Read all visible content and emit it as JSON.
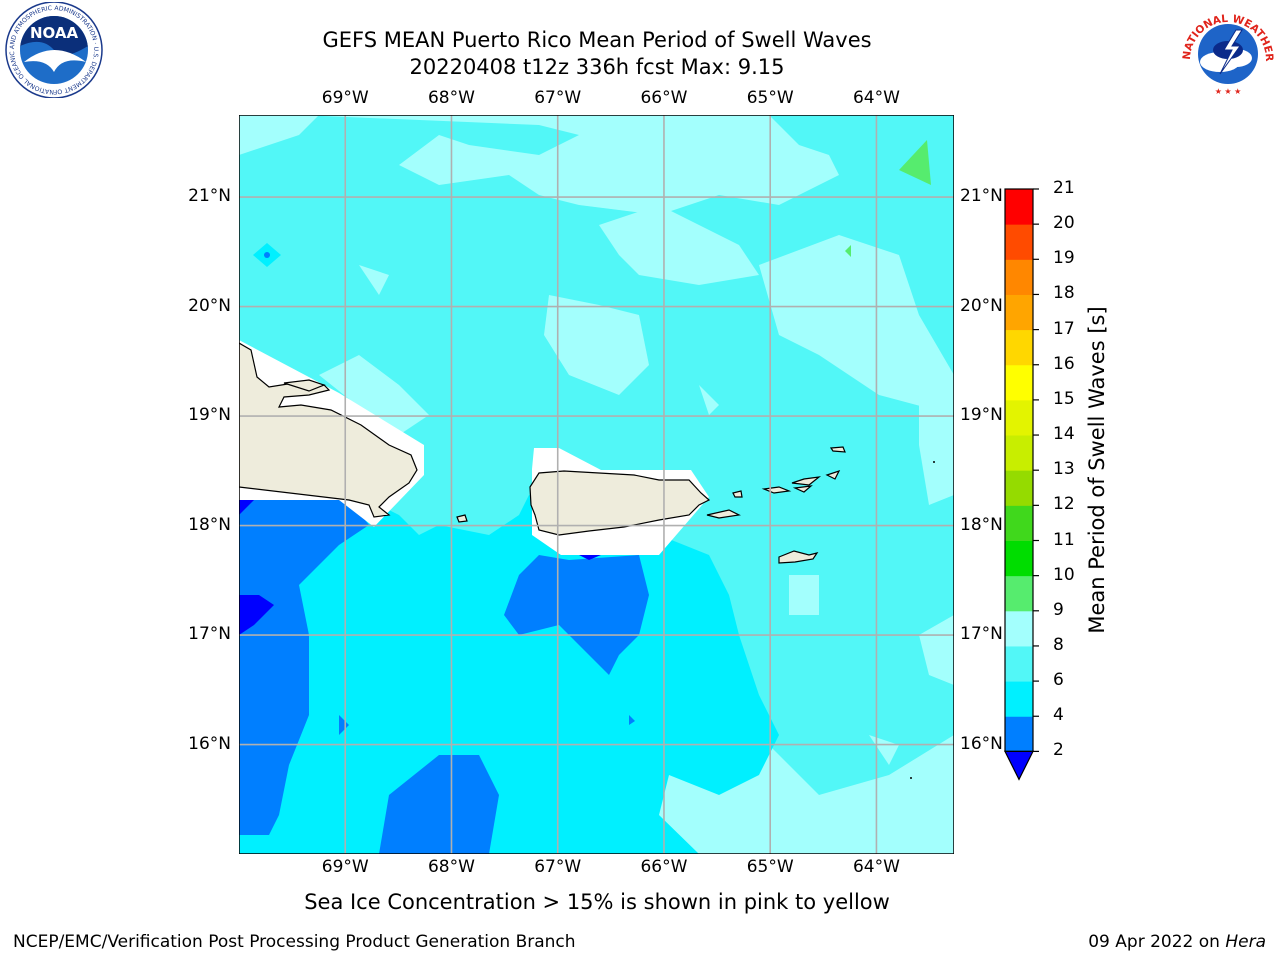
{
  "title": {
    "line1": "GEFS MEAN Puerto Rico Mean Period of Swell Waves",
    "line2": "20220408 t12z 336h fcst   Max: 9.15"
  },
  "logos": {
    "noaa_text": "NOAA",
    "noaa_ring": "NATIONAL OCEANIC AND ATMOSPHERIC ADMINISTRATION · U.S. DEPARTMENT OF COMMERCE",
    "nws_ring": "NATIONAL WEATHER SERVICE"
  },
  "map": {
    "lon_ticks": [
      {
        "value": -69,
        "label": "69°W"
      },
      {
        "value": -68,
        "label": "68°W"
      },
      {
        "value": -67,
        "label": "67°W"
      },
      {
        "value": -66,
        "label": "66°W"
      },
      {
        "value": -65,
        "label": "65°W"
      },
      {
        "value": -64,
        "label": "64°W"
      }
    ],
    "lat_ticks": [
      {
        "value": 21,
        "label": "21°N"
      },
      {
        "value": 20,
        "label": "20°N"
      },
      {
        "value": 19,
        "label": "19°N"
      },
      {
        "value": 18,
        "label": "18°N"
      },
      {
        "value": 17,
        "label": "17°N"
      },
      {
        "value": 16,
        "label": "16°N"
      }
    ],
    "extent": {
      "lon": [
        -70.0,
        -63.27
      ],
      "lat": [
        15.0,
        21.75
      ]
    },
    "colors": {
      "ocean_main": "#52f7f7",
      "ocean_light": "#a3fffd",
      "ocean_cyan": "#00f0ff",
      "ocean_blue": "#007fff",
      "ocean_deep": "#0000ff",
      "land": "#eeecdc",
      "undefined": "#ffffff",
      "green_patch": "#56ec6e",
      "grid": "#b0b0b0"
    }
  },
  "colorbar": {
    "title": "Mean Period of Swell Waves [s]",
    "levels": [
      2,
      4,
      6,
      8,
      9,
      10,
      11,
      12,
      13,
      14,
      15,
      16,
      17,
      18,
      19,
      20,
      21
    ],
    "colors": [
      "#007fff",
      "#00f0ff",
      "#52f7f7",
      "#a3fffd",
      "#56ec6e",
      "#00dd00",
      "#40d81c",
      "#95db00",
      "#c8ee00",
      "#e3f400",
      "#ffff00",
      "#ffd700",
      "#ffa500",
      "#ff8700",
      "#ff4b00",
      "#ff0000"
    ],
    "under_color": "#0000ff",
    "labels": [
      "2",
      "4",
      "6",
      "8",
      "9",
      "10",
      "11",
      "12",
      "13",
      "14",
      "15",
      "16",
      "17",
      "18",
      "19",
      "20",
      "21"
    ]
  },
  "subtitle": "Sea Ice Concentration > 15% is shown in pink to yellow",
  "footer": {
    "left": "NCEP/EMC/Verification Post Processing Product Generation Branch",
    "right_prefix": "09 Apr 2022 on ",
    "right_host": "Hera"
  }
}
